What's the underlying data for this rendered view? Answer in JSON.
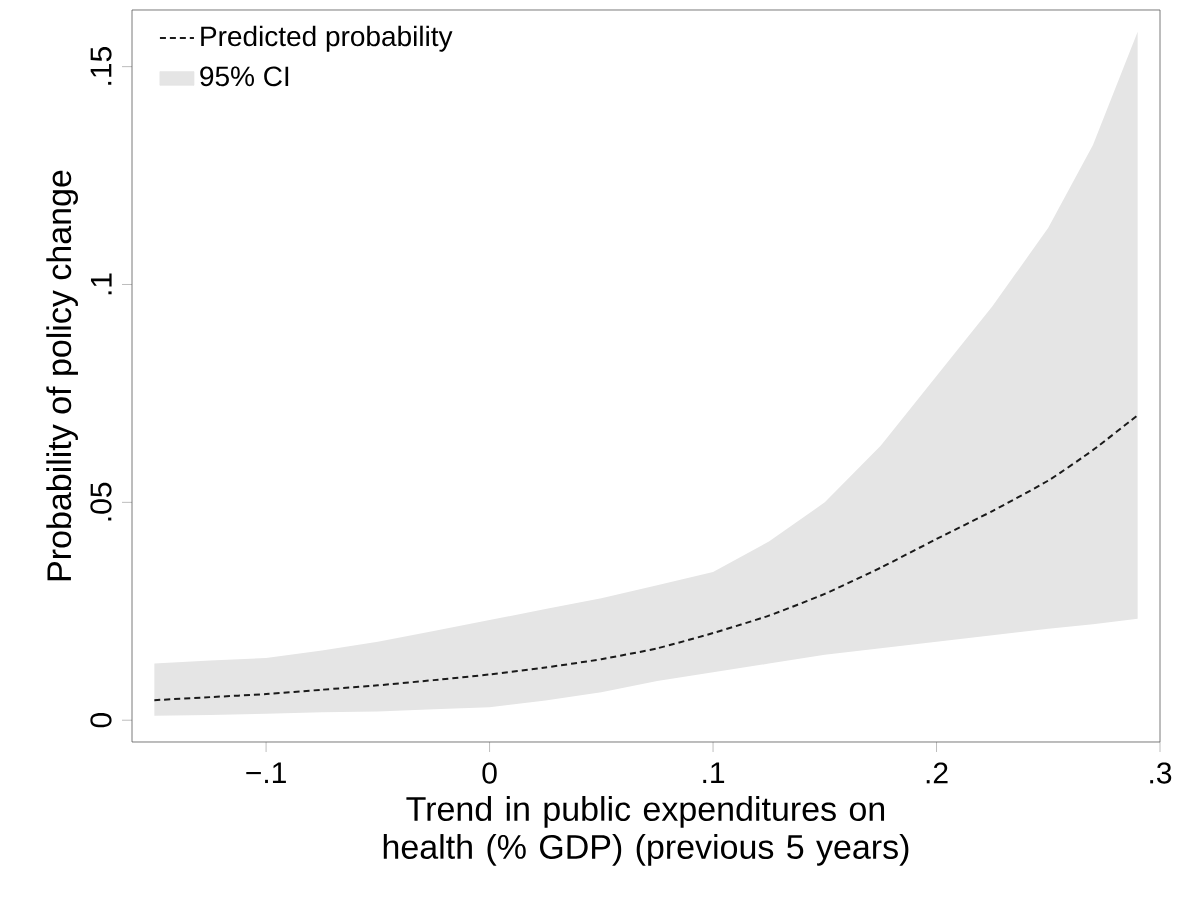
{
  "chart_data": {
    "type": "line",
    "xlabel": "Trend in public expenditures on health (% GDP) (previous 5 years)",
    "ylabel": "Probability of policy change",
    "xlim": [
      -0.16,
      0.3
    ],
    "ylim": [
      -0.005,
      0.163
    ],
    "xticks": [
      {
        "value": -0.1,
        "label": "−.1"
      },
      0,
      {
        "value": 0.1,
        "label": ".1"
      },
      {
        "value": 0.2,
        "label": ".2"
      },
      {
        "value": 0.3,
        "label": ".3"
      }
    ],
    "yticks": [
      0,
      {
        "value": 0.05,
        "label": ".05"
      },
      {
        "value": 0.1,
        "label": ".1"
      },
      {
        "value": 0.15,
        "label": ".15"
      }
    ],
    "x": [
      -0.15,
      -0.125,
      -0.1,
      -0.075,
      -0.05,
      -0.025,
      0,
      0.025,
      0.05,
      0.075,
      0.1,
      0.125,
      0.15,
      0.175,
      0.2,
      0.225,
      0.25,
      0.27,
      0.29
    ],
    "series": [
      {
        "name": "Predicted probability",
        "color": "#1a1a1a",
        "line_style": "dashed",
        "values": [
          0.0046,
          0.0053,
          0.006,
          0.007,
          0.008,
          0.0092,
          0.0105,
          0.0121,
          0.014,
          0.0165,
          0.02,
          0.024,
          0.029,
          0.035,
          0.0416,
          0.048,
          0.055,
          0.062,
          0.07
        ],
        "upper": [
          0.013,
          0.0137,
          0.0143,
          0.016,
          0.018,
          0.0205,
          0.023,
          0.0255,
          0.028,
          0.031,
          0.034,
          0.041,
          0.05,
          0.063,
          0.079,
          0.095,
          0.113,
          0.132,
          0.158
        ],
        "lower": [
          0.001,
          0.0012,
          0.0015,
          0.0018,
          0.002,
          0.0025,
          0.003,
          0.0045,
          0.0064,
          0.009,
          0.011,
          0.013,
          0.015,
          0.0165,
          0.018,
          0.0195,
          0.021,
          0.022,
          0.0233
        ]
      }
    ],
    "annotations": [
      "95% CI"
    ],
    "grid": false,
    "legend": "top left",
    "marker": "none"
  }
}
